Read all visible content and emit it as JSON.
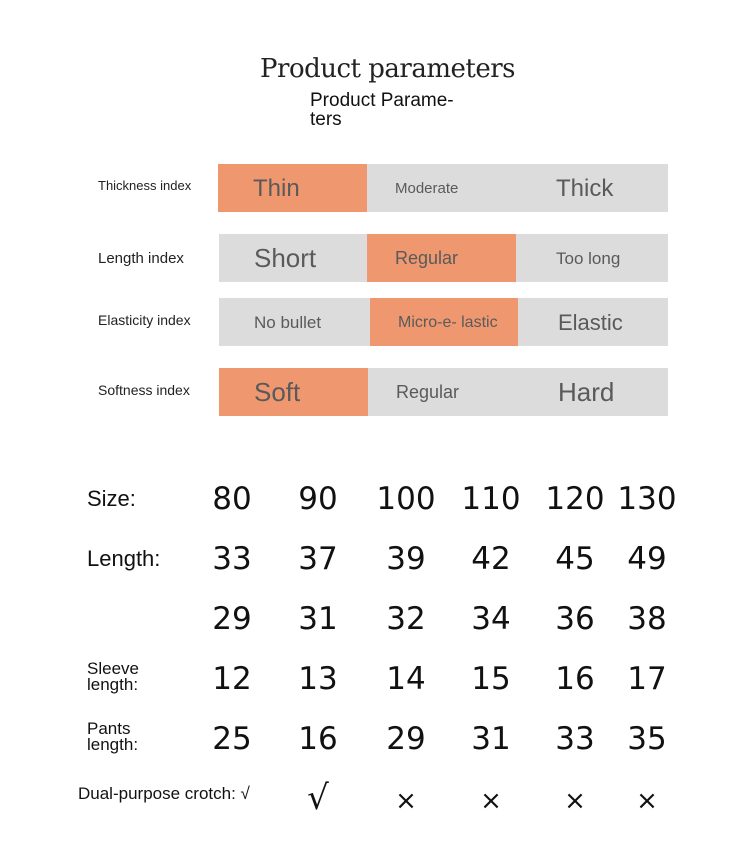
{
  "title": "Product parameters",
  "subtitle": "Product Parame- ters",
  "indices": [
    {
      "label": "Thickness index",
      "options": [
        "Thin",
        "Moderate",
        "Thick"
      ],
      "selected": 0
    },
    {
      "label": "Length index",
      "options": [
        "Short",
        "Regular",
        "Too long"
      ],
      "selected": 1
    },
    {
      "label": "Elasticity index",
      "options": [
        "No bullet",
        "Micro-e- lastic",
        "Elastic"
      ],
      "selected": 1
    },
    {
      "label": "Softness index",
      "options": [
        "Soft",
        "Regular",
        "Hard"
      ],
      "selected": 0
    }
  ],
  "size_table": {
    "rows": [
      {
        "label": "Size:",
        "values": [
          "80",
          "90",
          "100",
          "110",
          "120",
          "130"
        ]
      },
      {
        "label": "Length:",
        "values": [
          "33",
          "37",
          "39",
          "42",
          "45",
          "49"
        ]
      },
      {
        "label": "",
        "values": [
          "29",
          "31",
          "32",
          "34",
          "36",
          "38"
        ]
      },
      {
        "label": "Sleeve length:",
        "values": [
          "12",
          "13",
          "14",
          "15",
          "16",
          "17"
        ]
      },
      {
        "label": "Pants length:",
        "values": [
          "25",
          "16",
          "29",
          "31",
          "33",
          "35"
        ]
      },
      {
        "label": "Dual-purpose crotch: √",
        "values": [
          "",
          "√",
          "×",
          "×",
          "×",
          "×"
        ]
      }
    ]
  },
  "colors": {
    "highlight": "#ef9870",
    "inactive": "#dcdcdc"
  }
}
